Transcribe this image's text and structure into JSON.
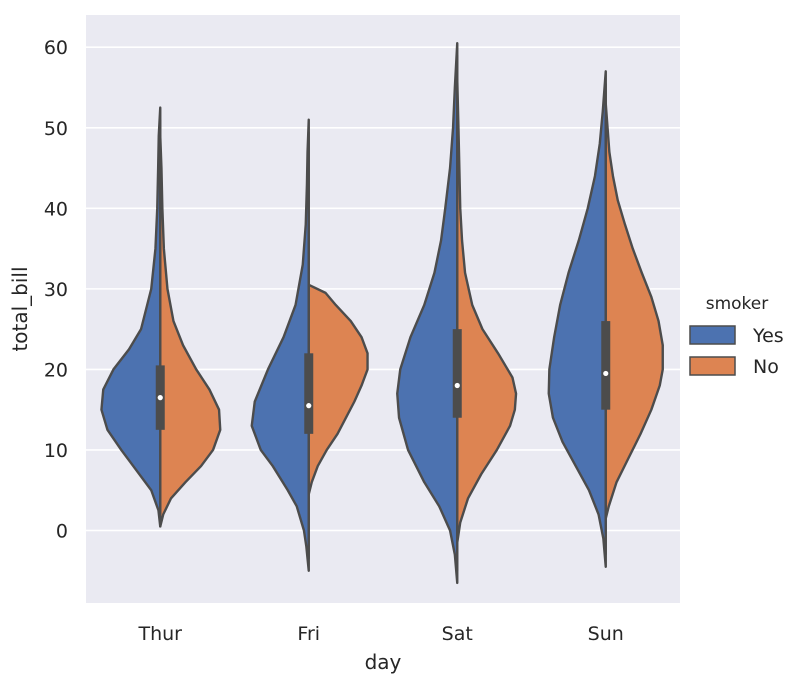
{
  "chart_data": {
    "type": "violin",
    "split": true,
    "xlabel": "day",
    "ylabel": "total_bill",
    "categories": [
      "Thur",
      "Fri",
      "Sat",
      "Sun"
    ],
    "ylim": [
      -9,
      64
    ],
    "yticks": [
      0,
      10,
      20,
      30,
      40,
      50,
      60
    ],
    "grid": true,
    "background": "#EAEAF2",
    "outline_color": "#4C4C4C",
    "legend": {
      "title": "smoker",
      "position": "right",
      "entries": [
        {
          "label": "Yes",
          "color": "#4C72B0"
        },
        {
          "label": "No",
          "color": "#DD8452"
        }
      ]
    },
    "series": [
      {
        "name": "Yes",
        "color": "#4C72B0",
        "side": "left",
        "violins": [
          {
            "category": "Thur",
            "median": 16.5,
            "q1": 12.5,
            "q3": 20.5,
            "profile": [
              [
                0.5,
                0.0
              ],
              [
                2.5,
                0.03
              ],
              [
                5,
                0.15
              ],
              [
                8,
                0.45
              ],
              [
                10,
                0.65
              ],
              [
                12.5,
                0.88
              ],
              [
                15,
                0.98
              ],
              [
                17.5,
                0.95
              ],
              [
                20,
                0.78
              ],
              [
                22.5,
                0.52
              ],
              [
                25,
                0.32
              ],
              [
                30,
                0.15
              ],
              [
                35,
                0.08
              ],
              [
                40,
                0.05
              ],
              [
                45,
                0.035
              ],
              [
                49,
                0.025
              ],
              [
                52.5,
                0.0
              ]
            ]
          },
          {
            "category": "Fri",
            "median": 15.5,
            "q1": 12,
            "q3": 22,
            "profile": [
              [
                -5,
                0.0
              ],
              [
                -2,
                0.04
              ],
              [
                0,
                0.08
              ],
              [
                3,
                0.2
              ],
              [
                5,
                0.35
              ],
              [
                8,
                0.6
              ],
              [
                10,
                0.8
              ],
              [
                13,
                0.95
              ],
              [
                16,
                0.9
              ],
              [
                20,
                0.68
              ],
              [
                24,
                0.42
              ],
              [
                28,
                0.22
              ],
              [
                33,
                0.1
              ],
              [
                38,
                0.05
              ],
              [
                43,
                0.03
              ],
              [
                47,
                0.02
              ],
              [
                51,
                0.0
              ]
            ]
          },
          {
            "category": "Sat",
            "median": 18,
            "q1": 14,
            "q3": 25,
            "profile": [
              [
                -6.5,
                0.0
              ],
              [
                -3,
                0.04
              ],
              [
                0,
                0.12
              ],
              [
                3,
                0.3
              ],
              [
                6,
                0.55
              ],
              [
                10,
                0.82
              ],
              [
                14,
                0.97
              ],
              [
                17,
                1.0
              ],
              [
                20,
                0.95
              ],
              [
                24,
                0.78
              ],
              [
                28,
                0.55
              ],
              [
                32,
                0.38
              ],
              [
                36,
                0.27
              ],
              [
                40,
                0.2
              ],
              [
                45,
                0.12
              ],
              [
                50,
                0.07
              ],
              [
                55,
                0.04
              ],
              [
                60.5,
                0.0
              ]
            ]
          },
          {
            "category": "Sun",
            "median": 19.5,
            "q1": 15,
            "q3": 26,
            "profile": [
              [
                -4.5,
                0.0
              ],
              [
                -1,
                0.04
              ],
              [
                2,
                0.12
              ],
              [
                5,
                0.28
              ],
              [
                8,
                0.5
              ],
              [
                11,
                0.72
              ],
              [
                14,
                0.88
              ],
              [
                17,
                0.95
              ],
              [
                20,
                0.94
              ],
              [
                24,
                0.86
              ],
              [
                28,
                0.76
              ],
              [
                32,
                0.62
              ],
              [
                36,
                0.45
              ],
              [
                40,
                0.3
              ],
              [
                44,
                0.18
              ],
              [
                48,
                0.1
              ],
              [
                52,
                0.05
              ],
              [
                57,
                0.0
              ]
            ]
          }
        ]
      },
      {
        "name": "No",
        "color": "#DD8452",
        "side": "right",
        "violins": [
          {
            "category": "Thur",
            "median": 16.5,
            "q1": 12.5,
            "q3": 20.5,
            "profile": [
              [
                0.5,
                0.0
              ],
              [
                2,
                0.05
              ],
              [
                4,
                0.18
              ],
              [
                6,
                0.42
              ],
              [
                8,
                0.68
              ],
              [
                10,
                0.88
              ],
              [
                12.5,
                1.0
              ],
              [
                15,
                0.98
              ],
              [
                17.5,
                0.82
              ],
              [
                20,
                0.6
              ],
              [
                23,
                0.38
              ],
              [
                26,
                0.22
              ],
              [
                30,
                0.12
              ],
              [
                35,
                0.06
              ],
              [
                40,
                0.035
              ],
              [
                45,
                0.02
              ],
              [
                49,
                0.0
              ]
            ]
          },
          {
            "category": "Fri",
            "median": 15.5,
            "q1": 12,
            "q3": 22,
            "profile": [
              [
                4.5,
                0.0
              ],
              [
                6,
                0.05
              ],
              [
                8,
                0.15
              ],
              [
                10,
                0.3
              ],
              [
                12,
                0.48
              ],
              [
                14,
                0.62
              ],
              [
                16,
                0.76
              ],
              [
                18,
                0.88
              ],
              [
                20,
                0.98
              ],
              [
                22,
                0.98
              ],
              [
                24,
                0.88
              ],
              [
                26,
                0.7
              ],
              [
                28,
                0.45
              ],
              [
                29.5,
                0.28
              ],
              [
                30.5,
                0.0
              ]
            ]
          },
          {
            "category": "Sat",
            "median": 18,
            "q1": 14,
            "q3": 25,
            "profile": [
              [
                -1.5,
                0.0
              ],
              [
                1,
                0.05
              ],
              [
                4,
                0.18
              ],
              [
                7,
                0.4
              ],
              [
                10,
                0.66
              ],
              [
                13,
                0.88
              ],
              [
                15,
                0.96
              ],
              [
                17,
                0.98
              ],
              [
                19,
                0.92
              ],
              [
                22,
                0.68
              ],
              [
                25,
                0.42
              ],
              [
                28,
                0.25
              ],
              [
                32,
                0.13
              ],
              [
                36,
                0.08
              ],
              [
                40,
                0.05
              ],
              [
                45,
                0.035
              ],
              [
                50,
                0.02
              ],
              [
                56,
                0.0
              ]
            ]
          },
          {
            "category": "Sun",
            "median": 19.5,
            "q1": 15,
            "q3": 26,
            "profile": [
              [
                1.5,
                0.0
              ],
              [
                3,
                0.05
              ],
              [
                6,
                0.18
              ],
              [
                9,
                0.38
              ],
              [
                12,
                0.58
              ],
              [
                15,
                0.76
              ],
              [
                18,
                0.9
              ],
              [
                20,
                0.95
              ],
              [
                23,
                0.95
              ],
              [
                26,
                0.88
              ],
              [
                29,
                0.76
              ],
              [
                32,
                0.6
              ],
              [
                35,
                0.45
              ],
              [
                38,
                0.32
              ],
              [
                41,
                0.2
              ],
              [
                44,
                0.12
              ],
              [
                47,
                0.06
              ],
              [
                50,
                0.03
              ],
              [
                53,
                0.0
              ]
            ]
          }
        ]
      }
    ]
  }
}
